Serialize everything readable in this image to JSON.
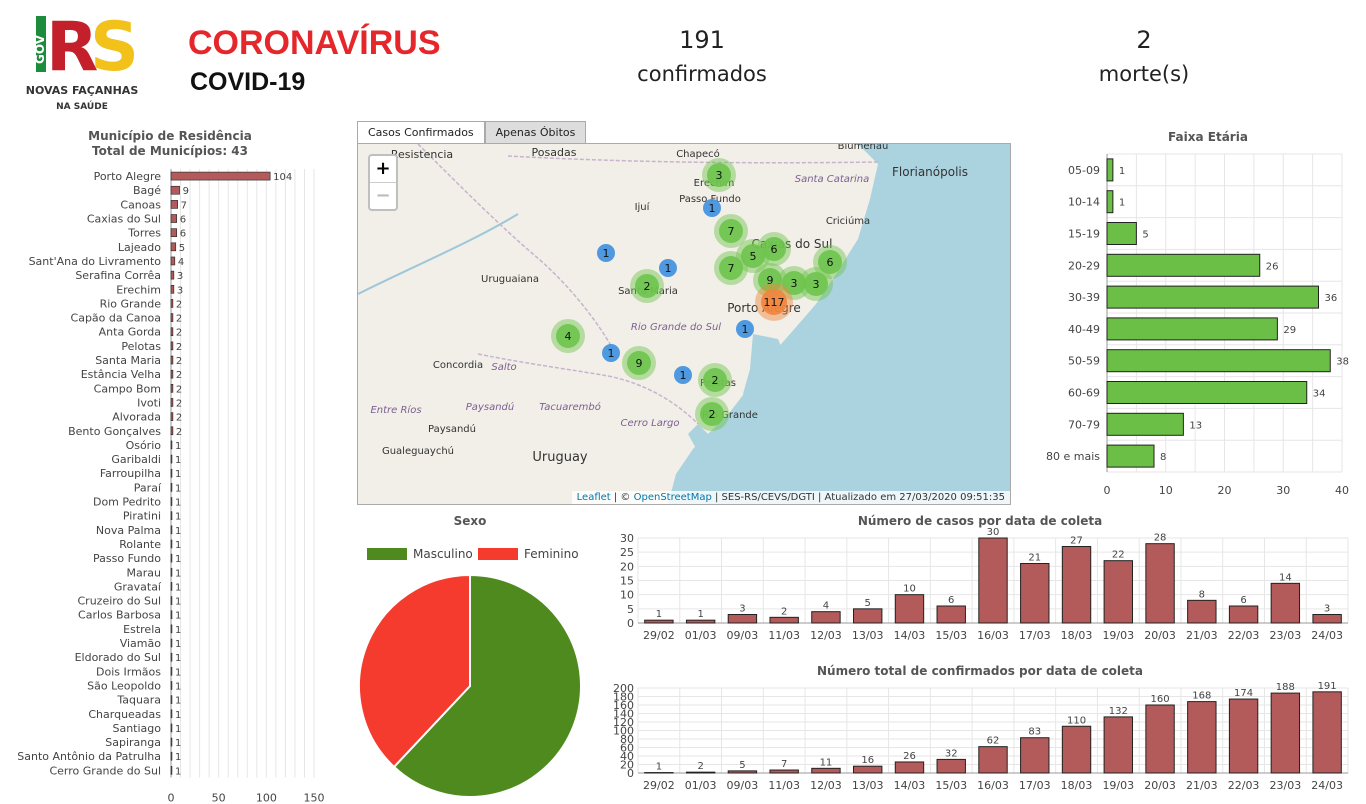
{
  "header": {
    "logo": {
      "gov_text": "GOV",
      "rs_text": "RS",
      "line1": "NOVAS FAÇANHAS",
      "line2": "NA SAÚDE"
    },
    "title": "CORONAVÍRUS",
    "subtitle": "COVID-19",
    "confirmed": {
      "value": "191",
      "label": "confirmados"
    },
    "deaths": {
      "value": "2",
      "label": "morte(s)"
    }
  },
  "municipios": {
    "title": "Município de Residência",
    "subtitle": "Total de Municípios: 43",
    "chart_data": {
      "type": "bar",
      "orientation": "horizontal",
      "categories": [
        "Porto Alegre",
        "Bagé",
        "Canoas",
        "Caxias do Sul",
        "Torres",
        "Lajeado",
        "Sant'Ana do Livramento",
        "Serafina Corrêa",
        "Erechim",
        "Rio Grande",
        "Capão da Canoa",
        "Anta Gorda",
        "Pelotas",
        "Santa Maria",
        "Estância Velha",
        "Campo Bom",
        "Ivoti",
        "Alvorada",
        "Bento Gonçalves",
        "Osório",
        "Garibaldi",
        "Farroupilha",
        "Paraí",
        "Dom Pedrito",
        "Piratini",
        "Nova Palma",
        "Rolante",
        "Passo Fundo",
        "Marau",
        "Gravataí",
        "Cruzeiro do Sul",
        "Carlos Barbosa",
        "Estrela",
        "Viamão",
        "Eldorado do Sul",
        "Dois Irmãos",
        "São Leopoldo",
        "Taquara",
        "Charqueadas",
        "Santiago",
        "Sapiranga",
        "Santo Antônio da Patrulha",
        "Cerro Grande do Sul"
      ],
      "values": [
        104,
        9,
        7,
        6,
        6,
        5,
        4,
        3,
        3,
        2,
        2,
        2,
        2,
        2,
        2,
        2,
        2,
        2,
        2,
        1,
        1,
        1,
        1,
        1,
        1,
        1,
        1,
        1,
        1,
        1,
        1,
        1,
        1,
        1,
        1,
        1,
        1,
        1,
        1,
        1,
        1,
        1,
        1
      ],
      "xticks": [
        0,
        50,
        100,
        150
      ],
      "xlim": [
        0,
        150
      ],
      "color": "#b35a5a"
    }
  },
  "map": {
    "tabs": [
      "Casos Confirmados",
      "Apenas Óbitos"
    ],
    "zoom_in": "+",
    "zoom_out": "−",
    "attribution": {
      "leaflet": "Leaflet",
      "sep": " | © ",
      "osm": "OpenStreetMap",
      "rest": " | SES-RS/CEVS/DGTI | Atualizado em 27/03/2020 09:51:35"
    },
    "place_labels": [
      "Resistencia",
      "Posadas",
      "Chapecó",
      "Blumenau",
      "Santa Catarina",
      "Florianópolis",
      "Passo Fundo",
      "Ijuí",
      "Criciúma",
      "Caxias do Sul",
      "Uruguaiana",
      "Santa Maria",
      "Porto Alegre",
      "Rio Grande do Sul",
      "Concordia",
      "Salto",
      "Paysandú",
      "Tacuarembó",
      "Pelotas",
      "Entre Ríos",
      "Cerro Largo",
      "Rio Grande",
      "Paysandú",
      "Gualeguaychú",
      "Uruguay",
      "Erechim"
    ],
    "clusters": [
      {
        "label": "3",
        "kind": "green"
      },
      {
        "label": "1",
        "kind": "blue"
      },
      {
        "label": "7",
        "kind": "green"
      },
      {
        "label": "6",
        "kind": "green"
      },
      {
        "label": "5",
        "kind": "green"
      },
      {
        "label": "1",
        "kind": "blue"
      },
      {
        "label": "1",
        "kind": "blue"
      },
      {
        "label": "7",
        "kind": "green"
      },
      {
        "label": "9",
        "kind": "green"
      },
      {
        "label": "3",
        "kind": "green"
      },
      {
        "label": "6",
        "kind": "green"
      },
      {
        "label": "3",
        "kind": "green"
      },
      {
        "label": "2",
        "kind": "green"
      },
      {
        "label": "117",
        "kind": "orange"
      },
      {
        "label": "1",
        "kind": "blue"
      },
      {
        "label": "4",
        "kind": "green"
      },
      {
        "label": "1",
        "kind": "blue"
      },
      {
        "label": "9",
        "kind": "green"
      },
      {
        "label": "1",
        "kind": "blue"
      },
      {
        "label": "2",
        "kind": "green"
      },
      {
        "label": "2",
        "kind": "green"
      }
    ],
    "colors": {
      "green": "#6ec44c",
      "blue": "#3d8fe0",
      "orange": "#f0843c",
      "sea": "#aad3df"
    }
  },
  "faixa": {
    "title": "Faixa Etária",
    "chart_data": {
      "type": "bar",
      "orientation": "horizontal",
      "categories": [
        "05-09",
        "10-14",
        "15-19",
        "20-29",
        "30-39",
        "40-49",
        "50-59",
        "60-69",
        "70-79",
        "80 e mais"
      ],
      "values": [
        1,
        1,
        5,
        26,
        36,
        29,
        38,
        34,
        13,
        8
      ],
      "xticks": [
        0,
        10,
        20,
        30,
        40
      ],
      "xlim": [
        0,
        40
      ],
      "color": "#6bbf47"
    }
  },
  "sexo": {
    "title": "Sexo",
    "chart_data": {
      "type": "pie",
      "labels": [
        "Masculino",
        "Feminino"
      ],
      "values": [
        62,
        38
      ],
      "colors": [
        "#4f8a1f",
        "#f43b2e"
      ]
    }
  },
  "casos_dia": {
    "title": "Número de casos por data de coleta",
    "chart_data": {
      "type": "bar",
      "categories": [
        "29/02",
        "01/03",
        "09/03",
        "11/03",
        "12/03",
        "13/03",
        "14/03",
        "15/03",
        "16/03",
        "17/03",
        "18/03",
        "19/03",
        "20/03",
        "21/03",
        "22/03",
        "23/03",
        "24/03"
      ],
      "values": [
        1,
        1,
        3,
        2,
        4,
        5,
        10,
        6,
        30,
        21,
        27,
        22,
        28,
        8,
        6,
        14,
        3
      ],
      "yticks": [
        0,
        5,
        10,
        15,
        20,
        25,
        30
      ],
      "ylim": [
        0,
        30
      ],
      "color": "#b35a5a"
    }
  },
  "total_dia": {
    "title": "Número total de confirmados por data de coleta",
    "chart_data": {
      "type": "bar",
      "categories": [
        "29/02",
        "01/03",
        "09/03",
        "11/03",
        "12/03",
        "13/03",
        "14/03",
        "15/03",
        "16/03",
        "17/03",
        "18/03",
        "19/03",
        "20/03",
        "21/03",
        "22/03",
        "23/03",
        "24/03"
      ],
      "values": [
        1,
        2,
        5,
        7,
        11,
        16,
        26,
        32,
        62,
        83,
        110,
        132,
        160,
        168,
        174,
        188,
        191
      ],
      "yticks": [
        0,
        20,
        40,
        60,
        80,
        100,
        120,
        140,
        160,
        180,
        200
      ],
      "ylim": [
        0,
        200
      ],
      "color": "#b35a5a"
    }
  }
}
